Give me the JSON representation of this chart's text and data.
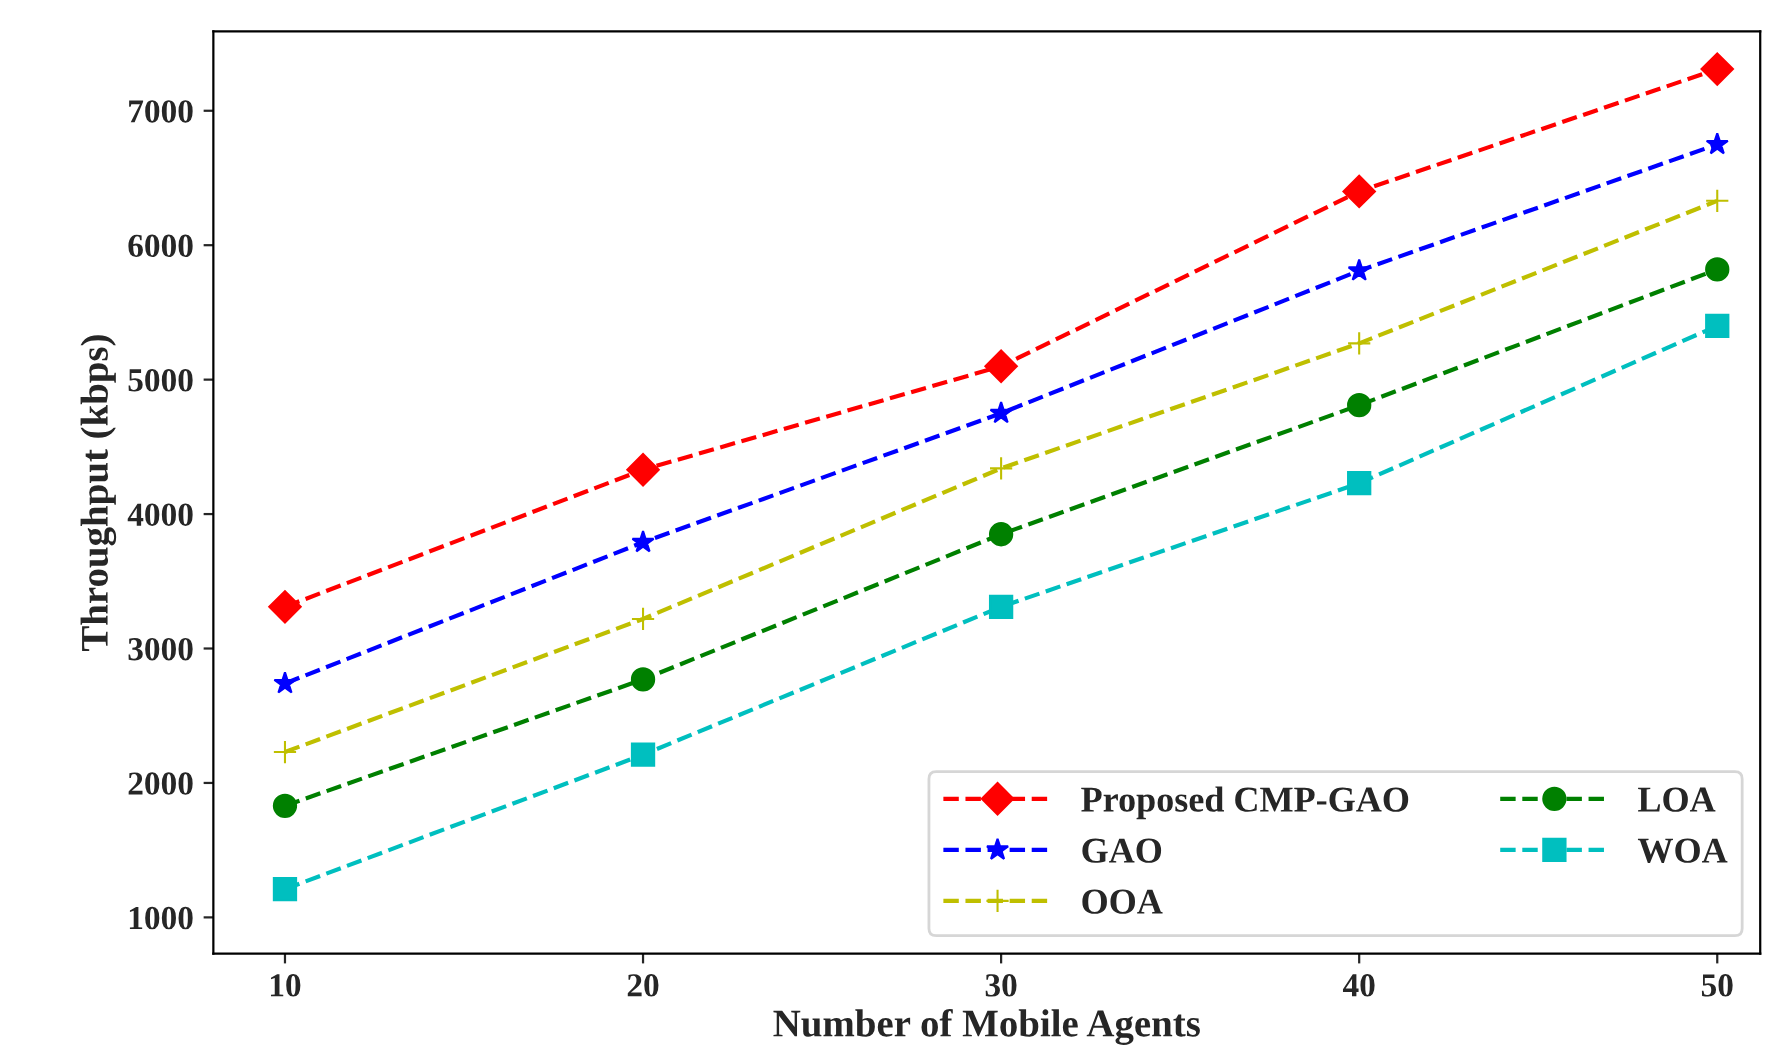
{
  "chart_data": {
    "type": "line",
    "xlabel": "Number of Mobile Agents",
    "ylabel": "Throughput (kbps)",
    "x": [
      10,
      20,
      30,
      40,
      50
    ],
    "series": [
      {
        "name": "Proposed CMP-GAO",
        "color": "#ff0000",
        "marker": "diamond",
        "values": [
          3310,
          4330,
          5100,
          6400,
          7310
        ]
      },
      {
        "name": "GAO",
        "color": "#0000ff",
        "marker": "star",
        "values": [
          2740,
          3790,
          4750,
          5810,
          6750
        ]
      },
      {
        "name": "OOA",
        "color": "#bfbf00",
        "marker": "cross",
        "values": [
          2230,
          3220,
          4340,
          5270,
          6330
        ]
      },
      {
        "name": "LOA",
        "color": "#008000",
        "marker": "circle",
        "values": [
          1830,
          2770,
          3850,
          4810,
          5820
        ]
      },
      {
        "name": "WOA",
        "color": "#00bfbf",
        "marker": "square",
        "values": [
          1210,
          2210,
          3310,
          4230,
          5400
        ]
      }
    ],
    "xlim": [
      8,
      51.2
    ],
    "ylim": [
      730,
      7590
    ],
    "xticks": [
      10,
      20,
      30,
      40,
      50
    ],
    "yticks": [
      1000,
      2000,
      3000,
      4000,
      5000,
      6000,
      7000
    ],
    "line_style": "dashed",
    "legend": "bottom right",
    "grid": false
  }
}
